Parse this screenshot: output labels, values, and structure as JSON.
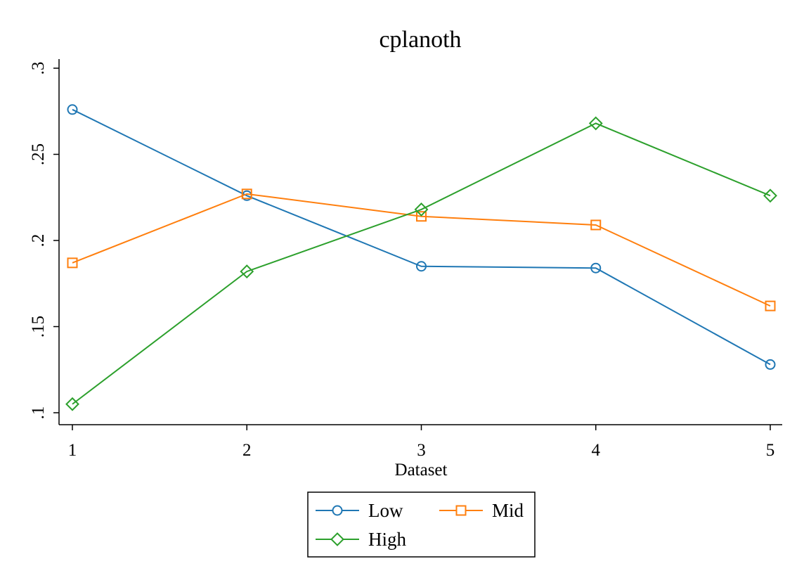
{
  "chart_data": {
    "type": "line",
    "title": "cplanoth",
    "xlabel": "Dataset",
    "ylabel": "",
    "x": [
      1,
      2,
      3,
      4,
      5
    ],
    "xlim": [
      1,
      5
    ],
    "ylim": [
      0.1,
      0.3
    ],
    "x_ticks": [
      "1",
      "2",
      "3",
      "4",
      "5"
    ],
    "x_tick_values": [
      1,
      2,
      3,
      4,
      5
    ],
    "y_ticks": [
      ".1",
      ".15",
      ".2",
      ".25",
      ".3"
    ],
    "y_tick_values": [
      0.1,
      0.15,
      0.2,
      0.25,
      0.3
    ],
    "grid": false,
    "legend_position": "bottom",
    "series": [
      {
        "name": "Low",
        "color": "#1f77b4",
        "marker": "circle",
        "values": [
          0.276,
          0.226,
          0.185,
          0.184,
          0.128
        ]
      },
      {
        "name": "Mid",
        "color": "#ff7f0e",
        "marker": "square",
        "values": [
          0.187,
          0.227,
          0.214,
          0.209,
          0.162
        ]
      },
      {
        "name": "High",
        "color": "#2ca02c",
        "marker": "diamond",
        "values": [
          0.105,
          0.182,
          0.218,
          0.268,
          0.226
        ]
      }
    ]
  }
}
